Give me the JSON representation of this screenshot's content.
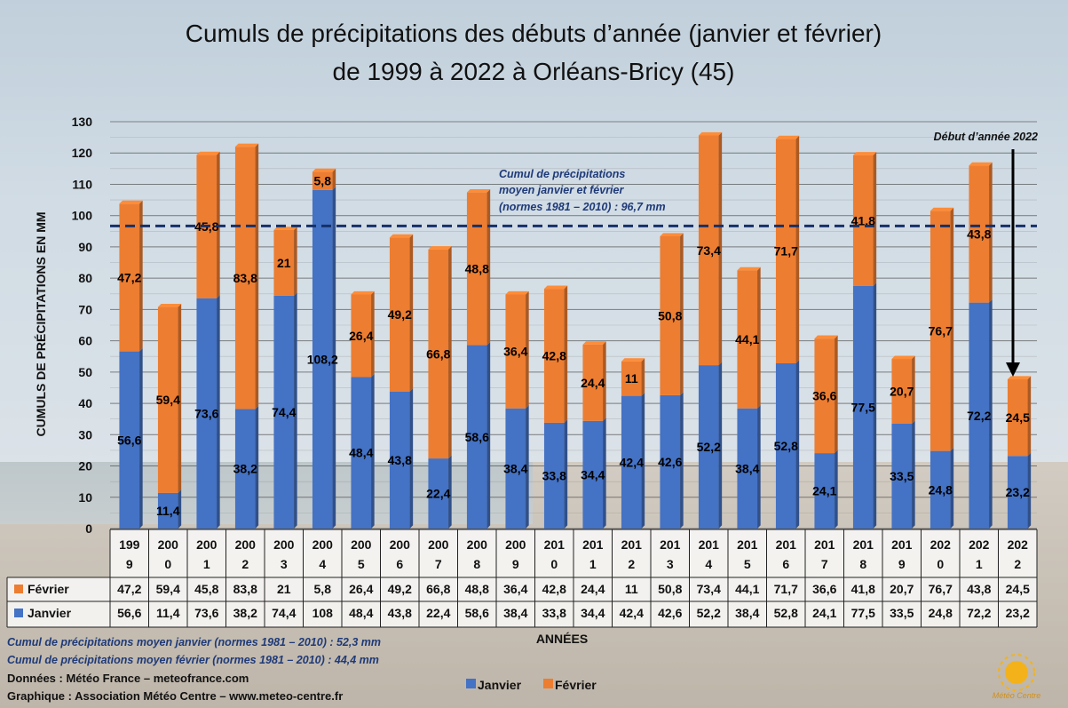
{
  "colors": {
    "janvier": "#4472c4",
    "fevrier": "#ed7d31",
    "avg_line": "#16306a",
    "note": "#1f3a78"
  },
  "chart_data": {
    "type": "bar",
    "stacked": true,
    "title_line1": "Cumuls de précipitations des débuts d’année (janvier et février)",
    "title_line2": "de 1999 à 2022 à Orléans-Bricy (45)",
    "ylabel": "CUMULS DE PRÉCIPITATIONS EN MM",
    "xlabel": "ANNÉES",
    "ylim": [
      0,
      130
    ],
    "yticks": [
      0,
      10,
      20,
      30,
      40,
      50,
      60,
      70,
      80,
      90,
      100,
      110,
      120,
      130
    ],
    "grid": true,
    "legend_position": "bottom",
    "categories": [
      [
        "199",
        "9"
      ],
      [
        "200",
        "0"
      ],
      [
        "200",
        "1"
      ],
      [
        "200",
        "2"
      ],
      [
        "200",
        "3"
      ],
      [
        "200",
        "4"
      ],
      [
        "200",
        "5"
      ],
      [
        "200",
        "6"
      ],
      [
        "200",
        "7"
      ],
      [
        "200",
        "8"
      ],
      [
        "200",
        "9"
      ],
      [
        "201",
        "0"
      ],
      [
        "201",
        "1"
      ],
      [
        "201",
        "2"
      ],
      [
        "201",
        "3"
      ],
      [
        "201",
        "4"
      ],
      [
        "201",
        "5"
      ],
      [
        "201",
        "6"
      ],
      [
        "201",
        "7"
      ],
      [
        "201",
        "8"
      ],
      [
        "201",
        "9"
      ],
      [
        "202",
        "0"
      ],
      [
        "202",
        "1"
      ],
      [
        "202",
        "2"
      ]
    ],
    "series": [
      {
        "name": "Janvier",
        "key": "janvier",
        "values": [
          56.6,
          11.4,
          73.6,
          38.2,
          74.4,
          108.2,
          48.4,
          43.8,
          22.4,
          58.6,
          38.4,
          33.8,
          34.4,
          42.4,
          42.6,
          52.2,
          38.4,
          52.8,
          24.1,
          77.5,
          33.5,
          24.8,
          72.2,
          23.2
        ],
        "labels": [
          "56,6",
          "11,4",
          "73,6",
          "38,2",
          "74,4",
          "108,2",
          "48,4",
          "43,8",
          "22,4",
          "58,6",
          "38,4",
          "33,8",
          "34,4",
          "42,4",
          "42,6",
          "52,2",
          "38,4",
          "52,8",
          "24,1",
          "77,5",
          "33,5",
          "24,8",
          "72,2",
          "23,2"
        ],
        "table_labels": [
          "56,6",
          "11,4",
          "73,6",
          "38,2",
          "74,4",
          "108",
          "48,4",
          "43,8",
          "22,4",
          "58,6",
          "38,4",
          "33,8",
          "34,4",
          "42,4",
          "42,6",
          "52,2",
          "38,4",
          "52,8",
          "24,1",
          "77,5",
          "33,5",
          "24,8",
          "72,2",
          "23,2"
        ]
      },
      {
        "name": "Février",
        "key": "fevrier",
        "values": [
          47.2,
          59.4,
          45.8,
          83.8,
          21,
          5.8,
          26.4,
          49.2,
          66.8,
          48.8,
          36.4,
          42.8,
          24.4,
          11,
          50.8,
          73.4,
          44.1,
          71.7,
          36.6,
          41.8,
          20.7,
          76.7,
          43.8,
          24.5
        ],
        "labels": [
          "47,2",
          "59,4",
          "45,8",
          "83,8",
          "21",
          "5,8",
          "26,4",
          "49,2",
          "66,8",
          "48,8",
          "36,4",
          "42,8",
          "24,4",
          "11",
          "50,8",
          "73,4",
          "44,1",
          "71,7",
          "36,6",
          "41,8",
          "20,7",
          "76,7",
          "43,8",
          "24,5"
        ],
        "table_labels": [
          "47,2",
          "59,4",
          "45,8",
          "83,8",
          "21",
          "5,8",
          "26,4",
          "49,2",
          "66,8",
          "48,8",
          "36,4",
          "42,8",
          "24,4",
          "11",
          "50,8",
          "73,4",
          "44,1",
          "71,7",
          "36,6",
          "41,8",
          "20,7",
          "76,7",
          "43,8",
          "24,5"
        ]
      }
    ],
    "reference_line": {
      "value": 96.7,
      "label": [
        "Cumul de précipitations",
        "moyen janvier et février",
        "(normes 1981 – 2010) : 96,7 mm"
      ]
    },
    "annotation": {
      "text": "Début d’année 2022",
      "category_index": 23
    }
  },
  "footer": {
    "note_janvier": "Cumul de précipitations moyen janvier (normes 1981 – 2010) : 52,3 mm",
    "note_fevrier": "Cumul de précipitations moyen février (normes 1981 – 2010) : 44,4 mm",
    "donnees": "Données : Météo France – meteofrance.com",
    "graphique": "Graphique : Association Météo Centre – www.meteo-centre.fr",
    "logo_text": "Météo Centre"
  }
}
